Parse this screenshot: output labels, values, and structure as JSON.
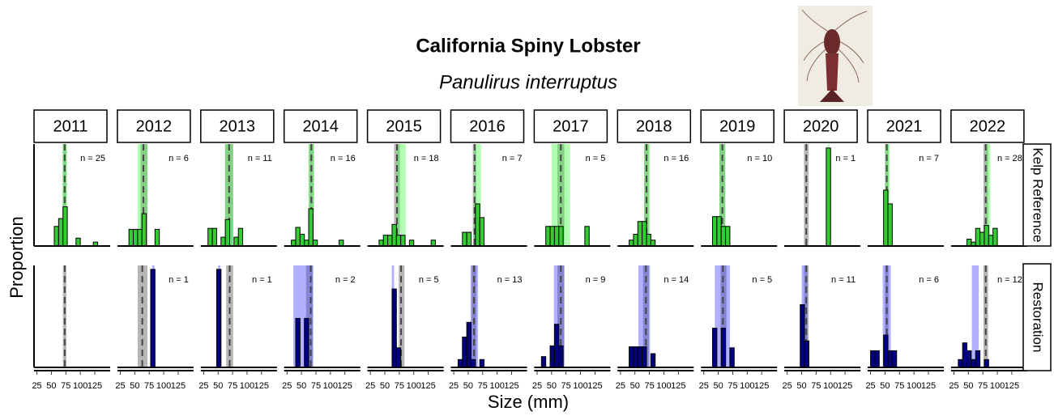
{
  "chart_data": {
    "type": "histogram",
    "title": "California Spiny Lobster",
    "subtitle": "Panulirus interruptus",
    "x_label": "Size (mm)",
    "y_label": "Proportion",
    "bins": [
      25,
      32.5,
      40,
      47.5,
      55,
      62.5,
      70,
      77.5,
      85,
      92.5,
      100,
      107.5,
      115,
      122.5,
      130,
      137.5
    ],
    "xlim": [
      20,
      146
    ],
    "xticks": [
      25,
      50,
      75,
      100,
      125
    ],
    "ylim": [
      0,
      1.04
    ],
    "ref_color": "#6e6e6e",
    "rows": [
      {
        "name": "Kelp Reference",
        "color": "#33cc33",
        "band_color": "#33ff33"
      },
      {
        "name": "Restoration",
        "color": "#000080",
        "band_color": "#3333ff"
      }
    ],
    "years": [
      {
        "year": "2011",
        "panels": [
          {
            "n_label": "n = 25",
            "values": [
              0,
              0,
              0,
              0,
              0.2,
              0.28,
              0.4,
              0,
              0,
              0.08,
              0,
              0,
              0,
              0.04,
              0
            ],
            "band": [
              69,
              77
            ],
            "ref_band": [
              70,
              76
            ],
            "ref_mean": 73
          },
          {
            "n_label": null,
            "values": [
              0,
              0,
              0,
              0,
              0,
              0,
              0,
              0,
              0,
              0,
              0,
              0,
              0,
              0,
              0
            ],
            "band": null,
            "ref_band": [
              70,
              76
            ],
            "ref_mean": 73
          }
        ]
      },
      {
        "year": "2012",
        "panels": [
          {
            "n_label": "n = 6",
            "values": [
              0,
              0,
              0.17,
              0.17,
              0.17,
              0.33,
              0,
              0,
              0.17,
              0,
              0,
              0,
              0,
              0,
              0
            ],
            "band": [
              55,
              72
            ],
            "ref_band": [
              60,
              72
            ],
            "ref_mean": 65
          },
          {
            "n_label": "n = 1",
            "values": [
              0,
              0,
              0,
              0,
              0,
              0,
              0,
              1,
              0,
              0,
              0,
              0,
              0,
              0,
              0
            ],
            "band": [
              80,
              84
            ],
            "ref_band": [
              55,
              72
            ],
            "ref_mean": 63
          }
        ]
      },
      {
        "year": "2013",
        "panels": [
          {
            "n_label": "n = 11",
            "values": [
              0,
              0.18,
              0.18,
              0,
              0.09,
              0.27,
              0,
              0.09,
              0.18,
              0,
              0,
              0,
              0,
              0,
              0
            ],
            "band": [
              62,
              76
            ],
            "ref_band": [
              62,
              76
            ],
            "ref_mean": 69
          },
          {
            "n_label": "n = 1",
            "values": [
              0,
              0,
              0,
              1,
              0,
              0,
              0,
              0,
              0,
              0,
              0,
              0,
              0,
              0,
              0
            ],
            "band": [
              50,
              54
            ],
            "ref_band": [
              64,
              76
            ],
            "ref_mean": 70
          }
        ]
      },
      {
        "year": "2014",
        "panels": [
          {
            "n_label": "n = 16",
            "values": [
              0,
              0.06,
              0.19,
              0.12,
              0.06,
              0.38,
              0.06,
              0,
              0,
              0,
              0,
              0,
              0.06,
              0,
              0
            ],
            "band": [
              62,
              72
            ],
            "ref_band": [
              63,
              71
            ],
            "ref_mean": 67
          },
          {
            "n_label": "n = 2",
            "values": [
              0,
              0,
              0.5,
              0,
              0.5,
              0,
              0,
              0,
              0,
              0,
              0,
              0,
              0,
              0,
              0
            ],
            "band": [
              36,
              70
            ],
            "ref_band": [
              58,
              70
            ],
            "ref_mean": 66
          }
        ]
      },
      {
        "year": "2015",
        "panels": [
          {
            "n_label": "n = 18",
            "values": [
              0,
              0,
              0.06,
              0.11,
              0.11,
              0.22,
              0.11,
              0.11,
              0,
              0.06,
              0,
              0,
              0,
              0,
              0.06
            ],
            "band": [
              70,
              86
            ],
            "ref_band": [
              66,
              76
            ],
            "ref_mean": 71
          },
          {
            "n_label": "n = 5",
            "values": [
              0,
              0,
              0,
              0,
              0,
              0.8,
              0.2,
              0,
              0,
              0,
              0,
              0,
              0,
              0,
              0
            ],
            "band": [
              62,
              66
            ],
            "ref_band": [
              74,
              84
            ],
            "ref_mean": 78
          }
        ]
      },
      {
        "year": "2016",
        "panels": [
          {
            "n_label": "n = 7",
            "values": [
              0,
              0,
              0.14,
              0.14,
              0,
              0.43,
              0.29,
              0,
              0,
              0,
              0,
              0,
              0,
              0,
              0
            ],
            "band": [
              60,
              72
            ],
            "ref_band": [
              58,
              64
            ],
            "ref_mean": 61
          },
          {
            "n_label": "n = 13",
            "values": [
              0,
              0.08,
              0.31,
              0.46,
              0.08,
              0,
              0.08,
              0,
              0,
              0,
              0,
              0,
              0,
              0,
              0
            ],
            "band": [
              54,
              67
            ],
            "ref_band": [
              56,
              64
            ],
            "ref_mean": 60
          }
        ]
      },
      {
        "year": "2017",
        "panels": [
          {
            "n_label": "n = 5",
            "values": [
              0,
              0,
              0.2,
              0.2,
              0.2,
              0.2,
              0,
              0,
              0,
              0,
              0,
              0.2,
              0,
              0,
              0
            ],
            "band": [
              50,
              82
            ],
            "ref_band": [
              60,
              72
            ],
            "ref_mean": 66
          },
          {
            "n_label": "n = 9",
            "values": [
              0,
              0.11,
              0,
              0.22,
              0.44,
              0.22,
              0,
              0,
              0,
              0,
              0,
              0,
              0,
              0,
              0
            ],
            "band": [
              54,
              72
            ],
            "ref_band": [
              60,
              72
            ],
            "ref_mean": 66
          }
        ]
      },
      {
        "year": "2018",
        "panels": [
          {
            "n_label": "n = 16",
            "values": [
              0,
              0,
              0.06,
              0.12,
              0.25,
              0.25,
              0.12,
              0.06,
              0,
              0,
              0,
              0,
              0,
              0,
              0
            ],
            "band": [
              66,
              76
            ],
            "ref_band": [
              66,
              74
            ],
            "ref_mean": 70
          },
          {
            "n_label": "n = 14",
            "values": [
              0,
              0,
              0.21,
              0.21,
              0.21,
              0.21,
              0,
              0.14,
              0,
              0,
              0,
              0,
              0,
              0,
              0
            ],
            "band": [
              56,
              76
            ],
            "ref_band": [
              64,
              74
            ],
            "ref_mean": 69
          }
        ]
      },
      {
        "year": "2019",
        "panels": [
          {
            "n_label": "n = 10",
            "values": [
              0,
              0,
              0.3,
              0.3,
              0.2,
              0.2,
              0,
              0,
              0,
              0,
              0,
              0,
              0,
              0,
              0
            ],
            "band": [
              52,
              62
            ],
            "ref_band": [
              52,
              62
            ],
            "ref_mean": 57
          },
          {
            "n_label": "n = 5",
            "values": [
              0,
              0,
              0.4,
              0,
              0.4,
              0,
              0.2,
              0,
              0,
              0,
              0,
              0,
              0,
              0,
              0
            ],
            "band": [
              44,
              70
            ],
            "ref_band": [
              54,
              64
            ],
            "ref_mean": 58
          }
        ]
      },
      {
        "year": "2020",
        "panels": [
          {
            "n_label": "n = 1",
            "values": [
              0,
              0,
              0,
              0,
              0,
              0,
              0,
              0,
              0,
              1,
              0,
              0,
              0,
              0,
              0
            ],
            "band": [
              95,
              98
            ],
            "ref_band": [
              54,
              62
            ],
            "ref_mean": 58
          },
          {
            "n_label": "n = 11",
            "values": [
              0,
              0,
              0,
              0.64,
              0.27,
              0,
              0,
              0,
              0,
              0,
              0,
              0,
              0,
              0,
              0
            ],
            "band": [
              50,
              60
            ],
            "ref_band": [
              54,
              62
            ],
            "ref_mean": 58
          }
        ]
      },
      {
        "year": "2021",
        "panels": [
          {
            "n_label": "n = 7",
            "values": [
              0,
              0,
              0,
              0.57,
              0.43,
              0,
              0,
              0,
              0,
              0,
              0,
              0,
              0,
              0,
              0
            ],
            "band": [
              50,
              58
            ],
            "ref_band": [
              50,
              56
            ],
            "ref_mean": 53
          },
          {
            "n_label": "n = 6",
            "values": [
              0.17,
              0.17,
              0,
              0.33,
              0.17,
              0.17,
              0,
              0,
              0,
              0,
              0,
              0,
              0,
              0,
              0
            ],
            "band": [
              46,
              60
            ],
            "ref_band": [
              50,
              56
            ],
            "ref_mean": 53
          }
        ]
      },
      {
        "year": "2022",
        "panels": [
          {
            "n_label": "n = 28",
            "values": [
              0,
              0,
              0,
              0.07,
              0.04,
              0.18,
              0.14,
              0.21,
              0.11,
              0.18,
              0,
              0,
              0,
              0,
              0
            ],
            "band": [
              80,
              88
            ],
            "ref_band": [
              76,
              84
            ],
            "ref_mean": 80
          },
          {
            "n_label": "n = 12",
            "values": [
              0,
              0.08,
              0.25,
              0.17,
              0.08,
              0.17,
              0,
              0.08,
              0,
              0,
              0,
              0,
              0,
              0,
              0
            ],
            "band": [
              56,
              68
            ],
            "ref_band": [
              76,
              84
            ],
            "ref_mean": 80
          }
        ]
      }
    ]
  }
}
